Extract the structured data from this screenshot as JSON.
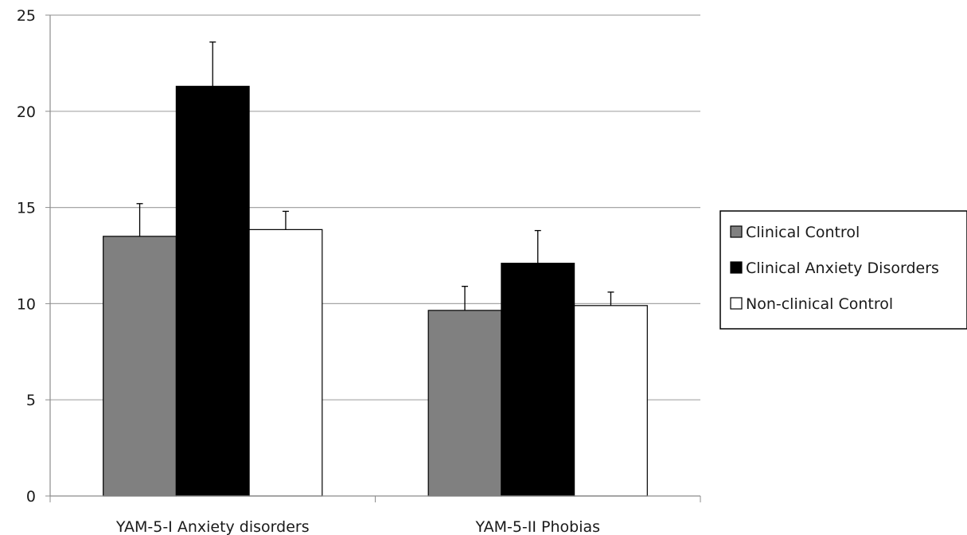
{
  "chart_data": {
    "type": "bar",
    "categories": [
      "YAM-5-I Anxiety disorders",
      "YAM-5-II Phobias"
    ],
    "series": [
      {
        "name": "Clinical Control",
        "color": "#808080",
        "values": [
          13.5,
          9.65
        ],
        "error": [
          1.7,
          1.25
        ]
      },
      {
        "name": "Clinical Anxiety Disorders",
        "color": "#000000",
        "values": [
          21.3,
          12.1
        ],
        "error": [
          2.3,
          1.7
        ]
      },
      {
        "name": "Non-clinical Control",
        "color": "#ffffff",
        "values": [
          13.85,
          9.9
        ],
        "error": [
          0.95,
          0.7
        ]
      }
    ],
    "ylim": [
      0,
      25
    ],
    "yticks": [
      0,
      5,
      10,
      15,
      20,
      25
    ],
    "grid": true,
    "legend": "right",
    "title": "",
    "xlabel": "",
    "ylabel": ""
  }
}
